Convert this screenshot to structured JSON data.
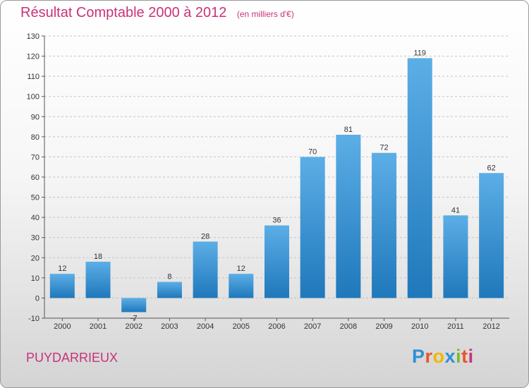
{
  "header": {
    "title": "Résultat Comptable 2000 à 2012",
    "unit": "(en milliers d'€)"
  },
  "footer": {
    "commune": "PUYDARRIEUX",
    "logo": {
      "text": "Proxiti",
      "letters": [
        {
          "char": "P",
          "color": "#2f8fd8"
        },
        {
          "char": "r",
          "color": "#e8552a"
        },
        {
          "char": "o",
          "color": "#f2b700"
        },
        {
          "char": "x",
          "color": "#2f8fd8"
        },
        {
          "char": "i",
          "color": "#7dba2f"
        },
        {
          "char": "t",
          "color": "#e8552a"
        },
        {
          "char": "i",
          "color": "#c8327a"
        }
      ]
    }
  },
  "colors": {
    "accent": "#c8327a",
    "bar_top": "#5caee6",
    "bar_bottom": "#1f78bb"
  },
  "chart_data": {
    "type": "bar",
    "categories": [
      "2000",
      "2001",
      "2002",
      "2003",
      "2004",
      "2005",
      "2006",
      "2007",
      "2008",
      "2009",
      "2010",
      "2011",
      "2012"
    ],
    "values": [
      12,
      18,
      -7,
      8,
      28,
      12,
      36,
      70,
      81,
      72,
      119,
      41,
      62
    ],
    "data_labels": [
      "12",
      "18",
      "-7",
      "8",
      "28",
      "12",
      "36",
      "70",
      "81",
      "72",
      "119",
      "41",
      "62"
    ],
    "ylim": [
      -10,
      130
    ],
    "yticks": [
      -10,
      0,
      10,
      20,
      30,
      40,
      50,
      60,
      70,
      80,
      90,
      100,
      110,
      120,
      130
    ],
    "grid": true,
    "legend": "none"
  }
}
